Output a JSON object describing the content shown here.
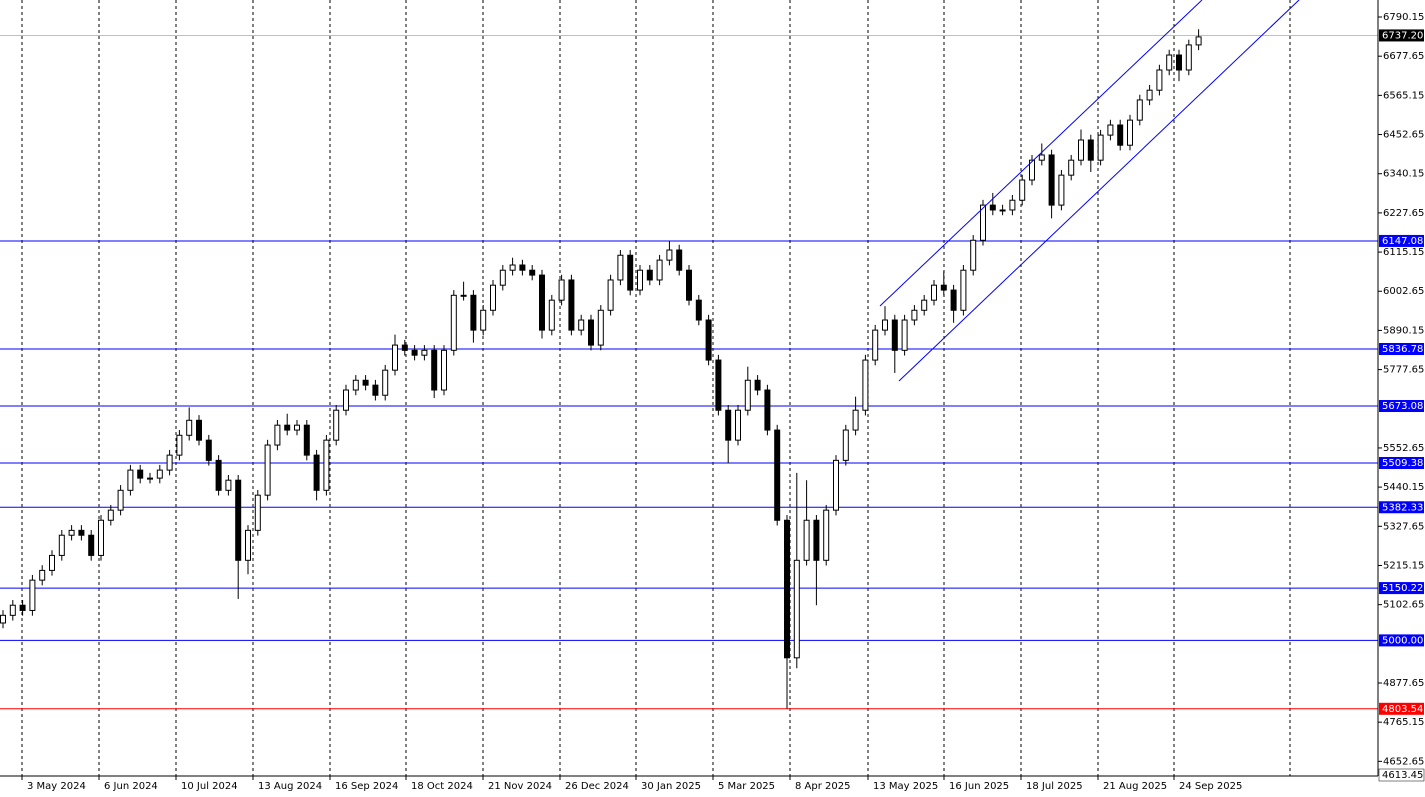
{
  "chart_data": {
    "type": "candlestick",
    "x_labels": [
      "3 May 2024",
      "6 Jun 2024",
      "10 Jul 2024",
      "13 Aug 2024",
      "16 Sep 2024",
      "18 Oct 2024",
      "21 Nov 2024",
      "26 Dec 2024",
      "30 Jan 2025",
      "5 Mar 2025",
      "8 Apr 2025",
      "13 May 2025",
      "16 Jun 2025",
      "18 Jul 2025",
      "21 Aug 2025",
      "24 Sep 2025"
    ],
    "candles": {
      "open": [
        5050,
        5072,
        5101,
        5086,
        5173,
        5201,
        5244,
        5302,
        5316,
        5302,
        5244,
        5345,
        5374,
        5431,
        5489,
        5466,
        5466,
        5489,
        5532,
        5589,
        5632,
        5575,
        5517,
        5431,
        5460,
        5230,
        5316,
        5417,
        5561,
        5618,
        5604,
        5618,
        5532,
        5431,
        5575,
        5661,
        5719,
        5747,
        5733,
        5704,
        5776,
        5848,
        5833,
        5819,
        5833,
        5719,
        5833,
        5991,
        5991,
        5891,
        5948,
        6020,
        6063,
        6078,
        6063,
        6049,
        5891,
        5977,
        6035,
        5891,
        5920,
        5848,
        5948,
        6035,
        6106,
        6006,
        6063,
        6035,
        6092,
        6121,
        6063,
        5977,
        5920,
        5805,
        5661,
        5575,
        5661,
        5747,
        5719,
        5604,
        5345,
        4950,
        5230,
        5345,
        5230,
        5374,
        5517,
        5604,
        5661,
        5805,
        5891,
        5920,
        5833,
        5920,
        5948,
        5977,
        6020,
        6006,
        5948,
        6063,
        6149,
        6250,
        6236,
        6236,
        6264,
        6322,
        6379,
        6394,
        6250,
        6336,
        6379,
        6437,
        6379,
        6451,
        6480,
        6422,
        6494,
        6552,
        6580,
        6638,
        6681,
        6638,
        6710
      ],
      "high": [
        5087,
        5116,
        5116,
        5188,
        5216,
        5259,
        5317,
        5331,
        5331,
        5317,
        5360,
        5389,
        5446,
        5504,
        5504,
        5481,
        5504,
        5547,
        5604,
        5669,
        5647,
        5590,
        5532,
        5475,
        5475,
        5331,
        5432,
        5576,
        5633,
        5651,
        5633,
        5633,
        5547,
        5590,
        5676,
        5734,
        5762,
        5762,
        5748,
        5791,
        5878,
        5863,
        5848,
        5848,
        5848,
        5848,
        6006,
        6030,
        6006,
        5963,
        6035,
        6078,
        6099,
        6093,
        6078,
        6064,
        5992,
        6050,
        6050,
        5935,
        5935,
        5963,
        6050,
        6121,
        6121,
        6078,
        6078,
        6107,
        6147,
        6136,
        6078,
        5992,
        5935,
        5820,
        5676,
        5676,
        5786,
        5762,
        5734,
        5619,
        5360,
        5481,
        5460,
        5360,
        5389,
        5532,
        5619,
        5700,
        5820,
        5906,
        5960,
        5935,
        5935,
        5963,
        5992,
        6035,
        6060,
        6021,
        6078,
        6164,
        6265,
        6285,
        6251,
        6279,
        6337,
        6394,
        6427,
        6409,
        6351,
        6394,
        6467,
        6452,
        6466,
        6495,
        6495,
        6509,
        6567,
        6595,
        6653,
        6696,
        6696,
        6725,
        6755
      ],
      "low": [
        5035,
        5057,
        5071,
        5071,
        5158,
        5186,
        5229,
        5287,
        5287,
        5229,
        5229,
        5330,
        5359,
        5416,
        5451,
        5451,
        5451,
        5474,
        5517,
        5574,
        5560,
        5502,
        5416,
        5416,
        5119,
        5190,
        5301,
        5402,
        5546,
        5589,
        5589,
        5517,
        5402,
        5416,
        5560,
        5646,
        5704,
        5718,
        5689,
        5689,
        5761,
        5818,
        5804,
        5804,
        5696,
        5704,
        5818,
        5976,
        5855,
        5876,
        5933,
        6005,
        6048,
        6048,
        6034,
        5867,
        5876,
        5962,
        5876,
        5876,
        5833,
        5833,
        5933,
        6020,
        5991,
        5991,
        6020,
        6020,
        6077,
        6048,
        5962,
        5905,
        5790,
        5646,
        5509,
        5560,
        5646,
        5704,
        5589,
        5330,
        4804,
        4920,
        5215,
        5101,
        5215,
        5359,
        5502,
        5589,
        5646,
        5790,
        5876,
        5768,
        5818,
        5905,
        5933,
        5962,
        5991,
        5912,
        5933,
        6048,
        6134,
        6221,
        6221,
        6221,
        6249,
        6307,
        6364,
        6212,
        6235,
        6321,
        6364,
        6345,
        6364,
        6436,
        6407,
        6407,
        6479,
        6537,
        6565,
        6623,
        6606,
        6623,
        6695
      ],
      "close": [
        5072,
        5101,
        5086,
        5173,
        5201,
        5244,
        5302,
        5316,
        5302,
        5244,
        5345,
        5374,
        5431,
        5489,
        5466,
        5466,
        5489,
        5532,
        5589,
        5632,
        5575,
        5517,
        5431,
        5460,
        5230,
        5316,
        5417,
        5561,
        5618,
        5604,
        5618,
        5532,
        5431,
        5575,
        5661,
        5719,
        5747,
        5733,
        5704,
        5776,
        5848,
        5833,
        5819,
        5833,
        5719,
        5833,
        5991,
        5991,
        5891,
        5948,
        6020,
        6063,
        6078,
        6063,
        6049,
        5891,
        5977,
        6035,
        5891,
        5920,
        5848,
        5948,
        6035,
        6106,
        6006,
        6063,
        6035,
        6092,
        6121,
        6063,
        5977,
        5920,
        5805,
        5661,
        5575,
        5661,
        5747,
        5719,
        5604,
        5345,
        4950,
        5230,
        5345,
        5230,
        5374,
        5517,
        5604,
        5661,
        5805,
        5891,
        5920,
        5833,
        5920,
        5948,
        5977,
        6020,
        6006,
        5948,
        6063,
        6149,
        6250,
        6236,
        6236,
        6264,
        6322,
        6379,
        6394,
        6250,
        6336,
        6379,
        6437,
        6379,
        6451,
        6480,
        6422,
        6494,
        6552,
        6580,
        6638,
        6681,
        6638,
        6710,
        6733
      ]
    },
    "up_color": "#ffffff",
    "down_color": "#000000",
    "ylim": [
      4613.45,
      6839
    ],
    "yticks": [
      6790.15,
      6677.65,
      6565.15,
      6452.65,
      6340.15,
      6227.65,
      6115.15,
      6002.65,
      5890.15,
      5777.65,
      5552.65,
      5440.15,
      5327.65,
      5215.15,
      5102.65,
      4877.65,
      4765.15,
      4652.65
    ],
    "levels": [
      6147.08,
      5836.78,
      5673.08,
      5509.38,
      5382.33,
      5150.22,
      {
        "value": 5000,
        "label": "5000.00"
      }
    ],
    "level_color": "#0000ff",
    "support_level": 4803.54,
    "support_color": "#ff0000",
    "current_price": {
      "value": 6737.2,
      "label": "6737.20"
    },
    "grid": true
  }
}
